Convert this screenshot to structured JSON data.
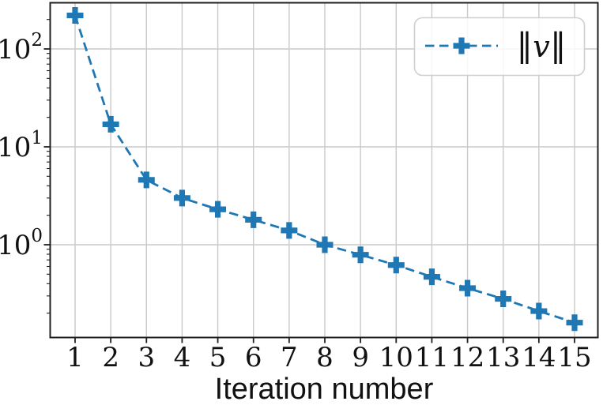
{
  "figure": {
    "title": "",
    "xlabel": "Iteration number",
    "ylabel": "",
    "background_color": "#ffffff",
    "accent_color": "#1f77b4",
    "grid_color": "#c9c9c9",
    "spine_color": "#1f1f1f",
    "legend_border_color": "#cfcfcf"
  },
  "legend": {
    "bar_left": "∥",
    "symbol": "v",
    "bar_right": "∥",
    "full_label": "∥v∥"
  },
  "chart_data": {
    "type": "line",
    "title": "",
    "xlabel": "Iteration number",
    "ylabel": "",
    "xscale": "linear",
    "yscale": "log",
    "x": [
      1,
      2,
      3,
      4,
      5,
      6,
      7,
      8,
      9,
      10,
      11,
      12,
      13,
      14,
      15
    ],
    "series": [
      {
        "name": "∥v∥",
        "values": [
          220,
          17,
          4.6,
          3.0,
          2.3,
          1.8,
          1.4,
          1.0,
          0.79,
          0.62,
          0.47,
          0.36,
          0.28,
          0.21,
          0.16
        ],
        "color": "#1f77b4",
        "line_style": "dashed",
        "marker": "plus_filled"
      }
    ],
    "xticks": [
      1,
      2,
      3,
      4,
      5,
      6,
      7,
      8,
      9,
      10,
      11,
      12,
      13,
      14,
      15
    ],
    "yticks": [
      {
        "base": "10",
        "exponent": "2",
        "value": 100
      },
      {
        "base": "10",
        "exponent": "1",
        "value": 10
      },
      {
        "base": "10",
        "exponent": "0",
        "value": 1
      }
    ],
    "xlim": [
      0.3,
      15.65
    ],
    "ylim": [
      0.115,
      320
    ],
    "grid": true,
    "grid_which": "major",
    "legend_position": "upper right"
  }
}
